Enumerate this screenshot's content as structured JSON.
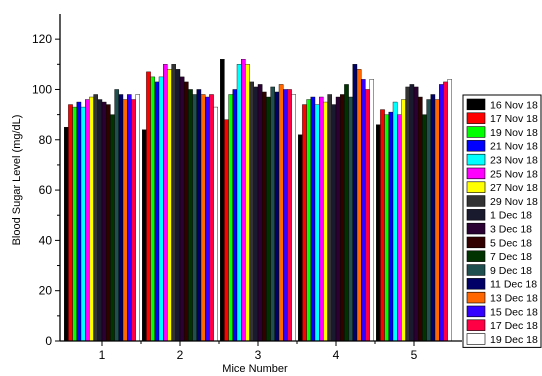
{
  "chart_data": {
    "type": "bar",
    "title": "",
    "xlabel": "Mice Number",
    "ylabel": "Blood Sugar Level (mg/dL)",
    "ylim": [
      0,
      130
    ],
    "yticks": [
      0,
      20,
      40,
      60,
      80,
      100,
      120
    ],
    "categories": [
      "1",
      "2",
      "3",
      "4",
      "5"
    ],
    "legend_position": "right",
    "grid": false,
    "series": [
      {
        "name": "16 Nov 18",
        "color": "#000000",
        "values": [
          85,
          84,
          112,
          82,
          86
        ]
      },
      {
        "name": "17 Nov 18",
        "color": "#ff0000",
        "values": [
          94,
          107,
          88,
          94,
          92
        ]
      },
      {
        "name": "19 Nov 18",
        "color": "#00ff00",
        "values": [
          93,
          105,
          98,
          96,
          90
        ]
      },
      {
        "name": "21 Nov 18",
        "color": "#0000ff",
        "values": [
          95,
          103,
          100,
          97,
          91
        ]
      },
      {
        "name": "23 Nov 18",
        "color": "#00ffff",
        "values": [
          93,
          105,
          110,
          94,
          95
        ]
      },
      {
        "name": "25 Nov 18",
        "color": "#ff00ff",
        "values": [
          96,
          110,
          112,
          97,
          90
        ]
      },
      {
        "name": "27 Nov 18",
        "color": "#ffff00",
        "values": [
          97,
          108,
          110,
          95,
          96
        ]
      },
      {
        "name": "29 Nov 18",
        "color": "#333333",
        "values": [
          98,
          110,
          103,
          98,
          101
        ]
      },
      {
        "name": "1 Dec 18",
        "color": "#1a1a2e",
        "values": [
          96,
          108,
          101,
          94,
          102
        ]
      },
      {
        "name": "3 Dec 18",
        "color": "#2b0033",
        "values": [
          95,
          105,
          102,
          97,
          101
        ]
      },
      {
        "name": "5 Dec 18",
        "color": "#330000",
        "values": [
          94,
          103,
          99,
          98,
          97
        ]
      },
      {
        "name": "7 Dec 18",
        "color": "#003300",
        "values": [
          90,
          100,
          97,
          102,
          90
        ]
      },
      {
        "name": "9 Dec 18",
        "color": "#1f4f4f",
        "values": [
          100,
          98,
          101,
          97,
          96
        ]
      },
      {
        "name": "11 Dec 18",
        "color": "#000066",
        "values": [
          98,
          100,
          99,
          110,
          98
        ]
      },
      {
        "name": "13 Dec 18",
        "color": "#ff6600",
        "values": [
          96,
          98,
          102,
          108,
          96
        ]
      },
      {
        "name": "15 Dec 18",
        "color": "#3300ff",
        "values": [
          98,
          97,
          100,
          104,
          102
        ]
      },
      {
        "name": "17 Dec 18",
        "color": "#ff0044",
        "values": [
          96,
          98,
          100,
          100,
          103
        ]
      },
      {
        "name": "19 Dec 18",
        "color": "#ffffff",
        "values": [
          98,
          93,
          98,
          104,
          104
        ]
      }
    ]
  }
}
